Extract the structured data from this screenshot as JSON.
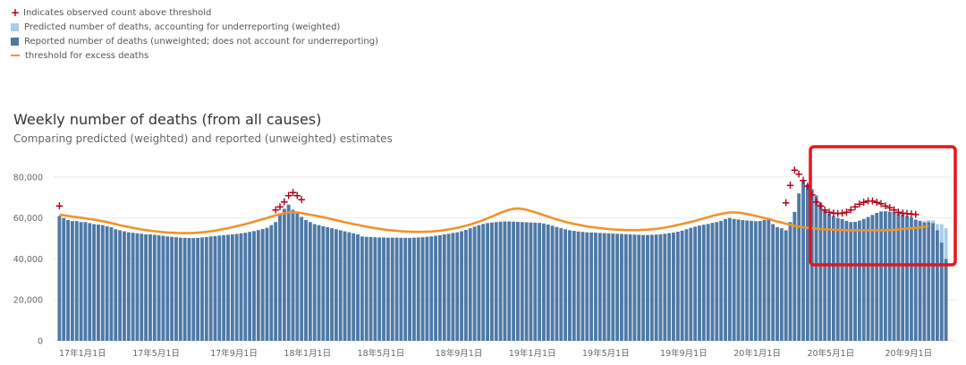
{
  "legend": {
    "items": [
      {
        "label": "Indicates observed count above threshold",
        "kind": "plus",
        "color": "#b3001b"
      },
      {
        "label": "Predicted number of deaths, accounting for underreporting (weighted)",
        "kind": "square",
        "color": "#a8cce6"
      },
      {
        "label": "Reported number of deaths (unweighted; does not account for underreporting)",
        "kind": "square",
        "color": "#4e79a7"
      },
      {
        "label": "threshold for excess deaths",
        "kind": "line",
        "color": "#f0932b"
      }
    ]
  },
  "colors": {
    "reported": "#4e79a7",
    "predicted": "#a8cce6",
    "threshold": "#f0932b",
    "excess": "#b3001b",
    "highlight": "#e8141c"
  },
  "chart_data": {
    "type": "bar",
    "title": "Weekly number of deaths (from all causes)",
    "subtitle": "Comparing predicted (weighted) and reported (unweighted) estimates",
    "ylim": [
      0,
      90000
    ],
    "yticks": [
      0,
      20000,
      40000,
      60000,
      80000
    ],
    "ytick_labels": [
      "0",
      "20,000",
      "40,000",
      "60,000",
      "80,000"
    ],
    "xtick_labels": [
      {
        "label": "17年1月1日",
        "week": 0
      },
      {
        "label": "17年5月1日",
        "week": 17
      },
      {
        "label": "17年9月1日",
        "week": 35
      },
      {
        "label": "18年1月1日",
        "week": 52
      },
      {
        "label": "18年5月1日",
        "week": 69
      },
      {
        "label": "18年9月1日",
        "week": 87
      },
      {
        "label": "19年1月1日",
        "week": 104
      },
      {
        "label": "19年5月1日",
        "week": 121
      },
      {
        "label": "19年9月1日",
        "week": 139
      },
      {
        "label": "20年1月1日",
        "week": 156
      },
      {
        "label": "20年5月1日",
        "week": 173
      },
      {
        "label": "20年9月1日",
        "week": 191
      }
    ],
    "series": [
      {
        "name": "Reported number of deaths (unweighted; does not account for underreporting)",
        "values": [
          61000,
          60000,
          59000,
          58500,
          58500,
          58000,
          58000,
          57500,
          57000,
          56800,
          56500,
          56000,
          55500,
          54500,
          54000,
          53500,
          53000,
          52800,
          52500,
          52300,
          52000,
          52000,
          51800,
          51500,
          51300,
          51000,
          50800,
          50600,
          50400,
          50300,
          50200,
          50200,
          50300,
          50500,
          50700,
          51000,
          51200,
          51400,
          51600,
          51800,
          52000,
          52200,
          52500,
          52800,
          53200,
          53600,
          54100,
          54600,
          55200,
          56500,
          58000,
          62000,
          64500,
          66500,
          64000,
          62500,
          60500,
          59000,
          58000,
          57000,
          56500,
          56000,
          55500,
          55000,
          54500,
          54000,
          53500,
          53000,
          52500,
          52000,
          51000,
          50800,
          50700,
          50600,
          50500,
          50500,
          50400,
          50400,
          50400,
          50300,
          50300,
          50300,
          50400,
          50500,
          50600,
          50800,
          51000,
          51300,
          51600,
          52000,
          52300,
          52700,
          53000,
          53500,
          54200,
          55000,
          55800,
          56500,
          57100,
          57500,
          57800,
          58000,
          58200,
          58300,
          58300,
          58200,
          58100,
          58000,
          57900,
          57800,
          57700,
          57600,
          57300,
          56800,
          56200,
          55600,
          55000,
          54500,
          54000,
          53700,
          53400,
          53200,
          53000,
          52900,
          52800,
          52700,
          52600,
          52500,
          52400,
          52300,
          52200,
          52100,
          52000,
          51900,
          51800,
          51700,
          51700,
          51800,
          51900,
          52000,
          52300,
          52600,
          52900,
          53300,
          53800,
          54500,
          55200,
          55800,
          56300,
          56700,
          57100,
          57600,
          58000,
          58600,
          59500,
          60000,
          59500,
          59300,
          59000,
          58800,
          58600,
          58400,
          58500,
          59000,
          59500,
          57000,
          55500,
          55000,
          54000,
          58000,
          63000,
          72000,
          78000,
          76500,
          74000,
          71000,
          67500,
          64000,
          62000,
          61000,
          60000,
          59500,
          58600,
          58000,
          58100,
          58700,
          59500,
          60500,
          61500,
          62500,
          63200,
          63300,
          63100,
          62900,
          62300,
          61800,
          61000,
          60300,
          59200,
          58600,
          57800,
          58000,
          57500,
          54000,
          48000,
          40000
        ]
      },
      {
        "name": "Predicted number of deaths, accounting for underreporting (weighted)",
        "values": [
          61000,
          60000,
          59000,
          58500,
          58500,
          58000,
          58000,
          57500,
          57000,
          56800,
          56500,
          56000,
          55500,
          54500,
          54000,
          53500,
          53000,
          52800,
          52500,
          52300,
          52000,
          52000,
          51800,
          51500,
          51300,
          51000,
          50800,
          50600,
          50400,
          50300,
          50200,
          50200,
          50300,
          50500,
          50700,
          51000,
          51200,
          51400,
          51600,
          51800,
          52000,
          52200,
          52500,
          52800,
          53200,
          53600,
          54100,
          54600,
          55200,
          56500,
          58000,
          62000,
          64500,
          66500,
          64000,
          62500,
          60500,
          59000,
          58000,
          57000,
          56500,
          56000,
          55500,
          55000,
          54500,
          54000,
          53500,
          53000,
          52500,
          52000,
          51000,
          50800,
          50700,
          50600,
          50500,
          50500,
          50400,
          50400,
          50400,
          50300,
          50300,
          50300,
          50400,
          50500,
          50600,
          50800,
          51000,
          51300,
          51600,
          52000,
          52300,
          52700,
          53000,
          53500,
          54200,
          55000,
          55800,
          56500,
          57100,
          57500,
          57800,
          58000,
          58200,
          58300,
          58300,
          58200,
          58100,
          58000,
          57900,
          57800,
          57700,
          57600,
          57300,
          56800,
          56200,
          55600,
          55000,
          54500,
          54000,
          53700,
          53400,
          53200,
          53000,
          52900,
          52800,
          52700,
          52600,
          52500,
          52400,
          52300,
          52200,
          52100,
          52000,
          51900,
          51800,
          51700,
          51700,
          51800,
          51900,
          52000,
          52300,
          52600,
          52900,
          53300,
          53800,
          54500,
          55200,
          55800,
          56300,
          56700,
          57100,
          57600,
          58000,
          58600,
          59500,
          60000,
          59500,
          59300,
          59000,
          58800,
          58600,
          58400,
          58500,
          59000,
          59500,
          57000,
          55500,
          55000,
          54000,
          58000,
          63000,
          72000,
          78000,
          76500,
          74000,
          71000,
          67500,
          64000,
          62000,
          61000,
          60000,
          59500,
          58600,
          58000,
          58100,
          58700,
          59500,
          60500,
          61500,
          62500,
          63200,
          63300,
          63100,
          62900,
          62300,
          61800,
          61000,
          60300,
          59200,
          58600,
          58500,
          59000,
          58800,
          57000,
          57000,
          55000
        ]
      },
      {
        "name": "threshold for excess deaths",
        "values": [
          61500,
          61300,
          61000,
          60700,
          60400,
          60100,
          59800,
          59500,
          59200,
          58800,
          58400,
          58000,
          57500,
          57000,
          56500,
          56000,
          55600,
          55200,
          54800,
          54400,
          54100,
          53800,
          53500,
          53300,
          53100,
          52900,
          52800,
          52700,
          52600,
          52600,
          52600,
          52700,
          52800,
          53000,
          53200,
          53500,
          53800,
          54200,
          54600,
          55000,
          55500,
          56000,
          56500,
          57000,
          57600,
          58200,
          58800,
          59400,
          60000,
          60700,
          61300,
          61800,
          62300,
          62700,
          62800,
          62700,
          62400,
          62000,
          61600,
          61200,
          60800,
          60400,
          59900,
          59400,
          58900,
          58400,
          57900,
          57500,
          57000,
          56600,
          56200,
          55800,
          55400,
          55000,
          54700,
          54400,
          54100,
          53900,
          53700,
          53500,
          53400,
          53300,
          53200,
          53200,
          53200,
          53300,
          53400,
          53600,
          53800,
          54100,
          54400,
          54800,
          55200,
          55700,
          56200,
          56800,
          57500,
          58200,
          59000,
          59800,
          60700,
          61600,
          62500,
          63300,
          64000,
          64500,
          64600,
          64400,
          64000,
          63400,
          62800,
          62100,
          61400,
          60700,
          60000,
          59300,
          58700,
          58100,
          57600,
          57100,
          56700,
          56300,
          55900,
          55600,
          55300,
          55000,
          54800,
          54600,
          54400,
          54300,
          54200,
          54100,
          54100,
          54100,
          54100,
          54200,
          54300,
          54500,
          54700,
          55000,
          55300,
          55700,
          56100,
          56600,
          57100,
          57600,
          58100,
          58600,
          59200,
          59800,
          60400,
          61000,
          61500,
          62000,
          62400,
          62700,
          62700,
          62600,
          62300,
          61900,
          61500,
          61000,
          60500,
          60000,
          59500,
          58900,
          58300,
          57800,
          57200,
          56700,
          56200,
          55800,
          55500,
          55200,
          55000,
          54800,
          54600,
          54500,
          54400,
          54300,
          54200,
          54100,
          54000,
          54000,
          54000,
          54000,
          54000,
          54000,
          54000,
          54000,
          54000,
          54000,
          54100,
          54200,
          54400,
          54600,
          54800,
          55000,
          55200,
          55400,
          55700,
          56000
        ]
      },
      {
        "name": "Indicates observed count above threshold",
        "points": [
          [
            0,
            66000
          ],
          [
            50,
            64000
          ],
          [
            51,
            65500
          ],
          [
            52,
            68000
          ],
          [
            53,
            71000
          ],
          [
            54,
            72500
          ],
          [
            55,
            71000
          ],
          [
            56,
            69000
          ],
          [
            168,
            67500
          ],
          [
            169,
            76000
          ],
          [
            170,
            83500
          ],
          [
            171,
            81500
          ],
          [
            172,
            78500
          ],
          [
            173,
            75500
          ],
          [
            174,
            71500
          ],
          [
            175,
            68000
          ],
          [
            176,
            66000
          ],
          [
            177,
            64000
          ],
          [
            178,
            63000
          ],
          [
            179,
            62500
          ],
          [
            180,
            62300
          ],
          [
            181,
            62500
          ],
          [
            182,
            63000
          ],
          [
            183,
            64000
          ],
          [
            184,
            65500
          ],
          [
            185,
            66800
          ],
          [
            186,
            67800
          ],
          [
            187,
            68300
          ],
          [
            188,
            68300
          ],
          [
            189,
            67800
          ],
          [
            190,
            67000
          ],
          [
            191,
            66000
          ],
          [
            192,
            65000
          ],
          [
            193,
            64000
          ],
          [
            194,
            63000
          ],
          [
            195,
            62500
          ],
          [
            196,
            62300
          ],
          [
            197,
            62000
          ],
          [
            198,
            61800
          ]
        ]
      }
    ]
  }
}
